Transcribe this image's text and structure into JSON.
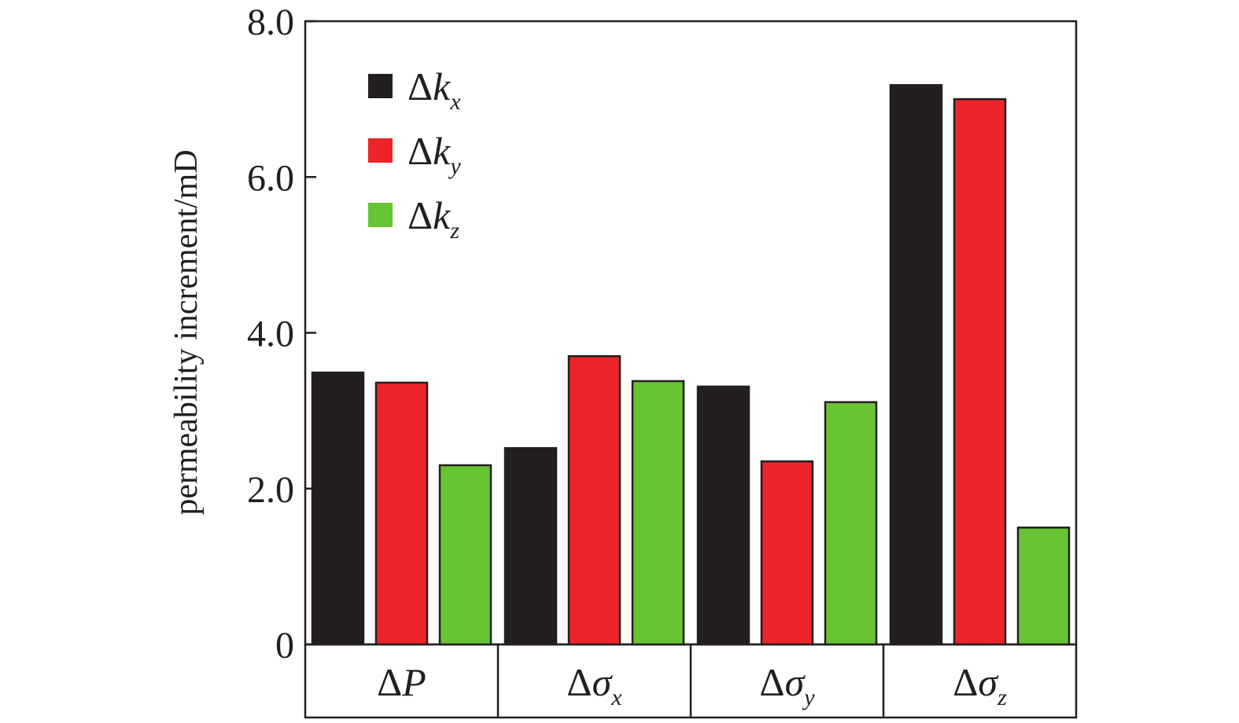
{
  "chart_data": {
    "type": "bar",
    "title": "",
    "xlabel": "",
    "ylabel": "permeability increment/mD",
    "ylim": [
      0,
      8
    ],
    "yticks": [
      {
        "value": 0,
        "label": "0"
      },
      {
        "value": 2,
        "label": "2.0"
      },
      {
        "value": 4,
        "label": "4.0"
      },
      {
        "value": 6,
        "label": "6.0"
      },
      {
        "value": 8,
        "label": "8.0"
      }
    ],
    "categories": [
      {
        "base": "Δ",
        "sym": "P",
        "sub": ""
      },
      {
        "base": "Δ",
        "sym": "σ",
        "sub": "x"
      },
      {
        "base": "Δ",
        "sym": "σ",
        "sub": "y"
      },
      {
        "base": "Δ",
        "sym": "σ",
        "sub": "z"
      }
    ],
    "series": [
      {
        "name": {
          "base": "Δ",
          "sym": "k",
          "sub": "x"
        },
        "color": "#231f20",
        "values": [
          3.49,
          2.52,
          3.31,
          7.18
        ]
      },
      {
        "name": {
          "base": "Δ",
          "sym": "k",
          "sub": "y"
        },
        "color": "#ed2429",
        "values": [
          3.36,
          3.7,
          2.35,
          7.0
        ]
      },
      {
        "name": {
          "base": "Δ",
          "sym": "k",
          "sub": "z"
        },
        "color": "#67c432",
        "values": [
          2.3,
          3.38,
          3.11,
          1.5
        ]
      }
    ],
    "legend_position": "top-left",
    "grid": false
  }
}
